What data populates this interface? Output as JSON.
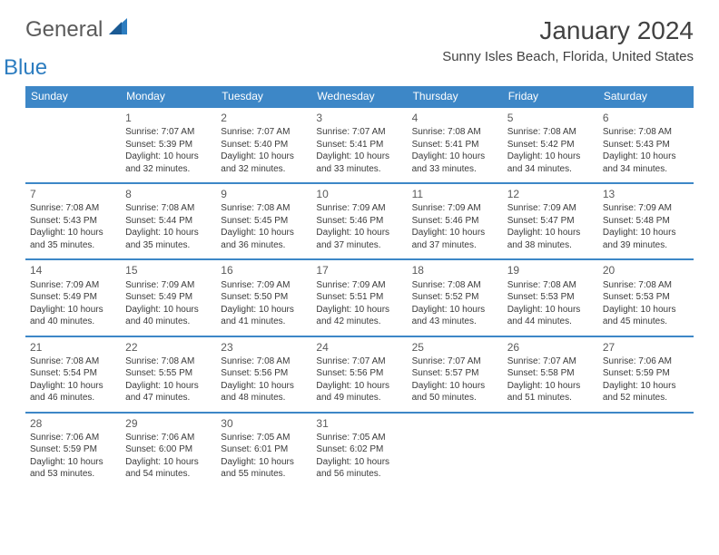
{
  "brand": {
    "word1": "General",
    "word2": "Blue"
  },
  "title": "January 2024",
  "location": "Sunny Isles Beach, Florida, United States",
  "header_color": "#3d87c7",
  "border_color": "#3d87c7",
  "text_color": "#333333",
  "day_headers": [
    "Sunday",
    "Monday",
    "Tuesday",
    "Wednesday",
    "Thursday",
    "Friday",
    "Saturday"
  ],
  "weeks": [
    [
      null,
      {
        "d": "1",
        "sr": "Sunrise: 7:07 AM",
        "ss": "Sunset: 5:39 PM",
        "dl1": "Daylight: 10 hours",
        "dl2": "and 32 minutes."
      },
      {
        "d": "2",
        "sr": "Sunrise: 7:07 AM",
        "ss": "Sunset: 5:40 PM",
        "dl1": "Daylight: 10 hours",
        "dl2": "and 32 minutes."
      },
      {
        "d": "3",
        "sr": "Sunrise: 7:07 AM",
        "ss": "Sunset: 5:41 PM",
        "dl1": "Daylight: 10 hours",
        "dl2": "and 33 minutes."
      },
      {
        "d": "4",
        "sr": "Sunrise: 7:08 AM",
        "ss": "Sunset: 5:41 PM",
        "dl1": "Daylight: 10 hours",
        "dl2": "and 33 minutes."
      },
      {
        "d": "5",
        "sr": "Sunrise: 7:08 AM",
        "ss": "Sunset: 5:42 PM",
        "dl1": "Daylight: 10 hours",
        "dl2": "and 34 minutes."
      },
      {
        "d": "6",
        "sr": "Sunrise: 7:08 AM",
        "ss": "Sunset: 5:43 PM",
        "dl1": "Daylight: 10 hours",
        "dl2": "and 34 minutes."
      }
    ],
    [
      {
        "d": "7",
        "sr": "Sunrise: 7:08 AM",
        "ss": "Sunset: 5:43 PM",
        "dl1": "Daylight: 10 hours",
        "dl2": "and 35 minutes."
      },
      {
        "d": "8",
        "sr": "Sunrise: 7:08 AM",
        "ss": "Sunset: 5:44 PM",
        "dl1": "Daylight: 10 hours",
        "dl2": "and 35 minutes."
      },
      {
        "d": "9",
        "sr": "Sunrise: 7:08 AM",
        "ss": "Sunset: 5:45 PM",
        "dl1": "Daylight: 10 hours",
        "dl2": "and 36 minutes."
      },
      {
        "d": "10",
        "sr": "Sunrise: 7:09 AM",
        "ss": "Sunset: 5:46 PM",
        "dl1": "Daylight: 10 hours",
        "dl2": "and 37 minutes."
      },
      {
        "d": "11",
        "sr": "Sunrise: 7:09 AM",
        "ss": "Sunset: 5:46 PM",
        "dl1": "Daylight: 10 hours",
        "dl2": "and 37 minutes."
      },
      {
        "d": "12",
        "sr": "Sunrise: 7:09 AM",
        "ss": "Sunset: 5:47 PM",
        "dl1": "Daylight: 10 hours",
        "dl2": "and 38 minutes."
      },
      {
        "d": "13",
        "sr": "Sunrise: 7:09 AM",
        "ss": "Sunset: 5:48 PM",
        "dl1": "Daylight: 10 hours",
        "dl2": "and 39 minutes."
      }
    ],
    [
      {
        "d": "14",
        "sr": "Sunrise: 7:09 AM",
        "ss": "Sunset: 5:49 PM",
        "dl1": "Daylight: 10 hours",
        "dl2": "and 40 minutes."
      },
      {
        "d": "15",
        "sr": "Sunrise: 7:09 AM",
        "ss": "Sunset: 5:49 PM",
        "dl1": "Daylight: 10 hours",
        "dl2": "and 40 minutes."
      },
      {
        "d": "16",
        "sr": "Sunrise: 7:09 AM",
        "ss": "Sunset: 5:50 PM",
        "dl1": "Daylight: 10 hours",
        "dl2": "and 41 minutes."
      },
      {
        "d": "17",
        "sr": "Sunrise: 7:09 AM",
        "ss": "Sunset: 5:51 PM",
        "dl1": "Daylight: 10 hours",
        "dl2": "and 42 minutes."
      },
      {
        "d": "18",
        "sr": "Sunrise: 7:08 AM",
        "ss": "Sunset: 5:52 PM",
        "dl1": "Daylight: 10 hours",
        "dl2": "and 43 minutes."
      },
      {
        "d": "19",
        "sr": "Sunrise: 7:08 AM",
        "ss": "Sunset: 5:53 PM",
        "dl1": "Daylight: 10 hours",
        "dl2": "and 44 minutes."
      },
      {
        "d": "20",
        "sr": "Sunrise: 7:08 AM",
        "ss": "Sunset: 5:53 PM",
        "dl1": "Daylight: 10 hours",
        "dl2": "and 45 minutes."
      }
    ],
    [
      {
        "d": "21",
        "sr": "Sunrise: 7:08 AM",
        "ss": "Sunset: 5:54 PM",
        "dl1": "Daylight: 10 hours",
        "dl2": "and 46 minutes."
      },
      {
        "d": "22",
        "sr": "Sunrise: 7:08 AM",
        "ss": "Sunset: 5:55 PM",
        "dl1": "Daylight: 10 hours",
        "dl2": "and 47 minutes."
      },
      {
        "d": "23",
        "sr": "Sunrise: 7:08 AM",
        "ss": "Sunset: 5:56 PM",
        "dl1": "Daylight: 10 hours",
        "dl2": "and 48 minutes."
      },
      {
        "d": "24",
        "sr": "Sunrise: 7:07 AM",
        "ss": "Sunset: 5:56 PM",
        "dl1": "Daylight: 10 hours",
        "dl2": "and 49 minutes."
      },
      {
        "d": "25",
        "sr": "Sunrise: 7:07 AM",
        "ss": "Sunset: 5:57 PM",
        "dl1": "Daylight: 10 hours",
        "dl2": "and 50 minutes."
      },
      {
        "d": "26",
        "sr": "Sunrise: 7:07 AM",
        "ss": "Sunset: 5:58 PM",
        "dl1": "Daylight: 10 hours",
        "dl2": "and 51 minutes."
      },
      {
        "d": "27",
        "sr": "Sunrise: 7:06 AM",
        "ss": "Sunset: 5:59 PM",
        "dl1": "Daylight: 10 hours",
        "dl2": "and 52 minutes."
      }
    ],
    [
      {
        "d": "28",
        "sr": "Sunrise: 7:06 AM",
        "ss": "Sunset: 5:59 PM",
        "dl1": "Daylight: 10 hours",
        "dl2": "and 53 minutes."
      },
      {
        "d": "29",
        "sr": "Sunrise: 7:06 AM",
        "ss": "Sunset: 6:00 PM",
        "dl1": "Daylight: 10 hours",
        "dl2": "and 54 minutes."
      },
      {
        "d": "30",
        "sr": "Sunrise: 7:05 AM",
        "ss": "Sunset: 6:01 PM",
        "dl1": "Daylight: 10 hours",
        "dl2": "and 55 minutes."
      },
      {
        "d": "31",
        "sr": "Sunrise: 7:05 AM",
        "ss": "Sunset: 6:02 PM",
        "dl1": "Daylight: 10 hours",
        "dl2": "and 56 minutes."
      },
      null,
      null,
      null
    ]
  ]
}
